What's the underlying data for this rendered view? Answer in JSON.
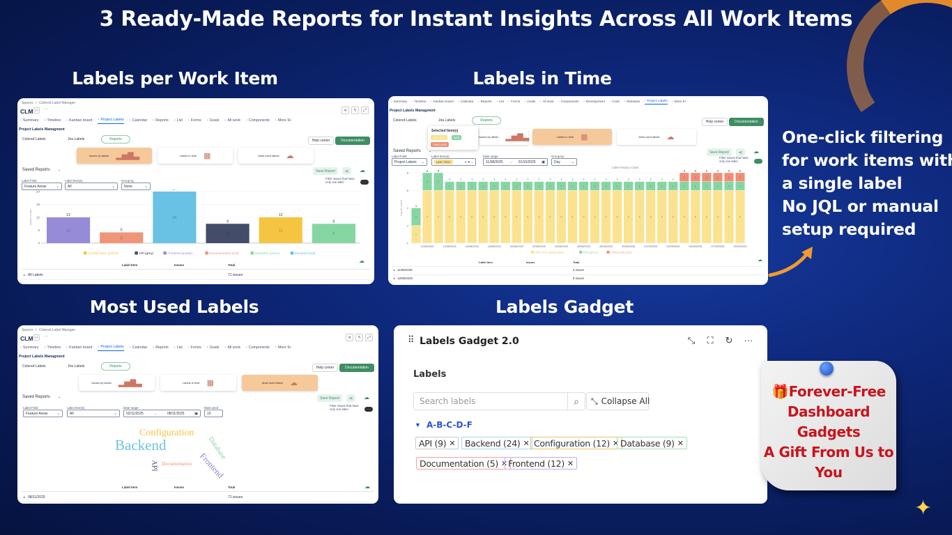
{
  "header": {
    "title": "3 Ready-Made Reports for Instant Insights Across All Work Items"
  },
  "sections": {
    "labels_per_item": "Labels per Work Item",
    "labels_in_time": "Labels in Time",
    "most_used": "Most Used Labels",
    "gadget": "Labels Gadget"
  },
  "side_text": [
    "One-click filtering",
    "for work items with",
    "a single label",
    "No JQL or manual",
    "setup required"
  ],
  "note": {
    "lines": [
      "🎁Forever-Free",
      "Dashboard",
      "Gadgets",
      "A Gift From Us to",
      "You"
    ]
  },
  "app": {
    "breadcrumb": [
      "Spaces",
      "/",
      "Colored Label Manager"
    ],
    "project": "CLM",
    "more": "···",
    "tabs": [
      "Summary",
      "Timeline",
      "Kanban board",
      "Project Labels",
      "Calendar",
      "Reports",
      "List",
      "Forms",
      "Goals",
      "All work",
      "Components",
      "More 9+"
    ],
    "page_title": "Project Labels Managment",
    "links": [
      "Colored Labels",
      "Jira Labels",
      "Reports"
    ],
    "help": "Help center",
    "docs": "Documentation",
    "cards": [
      "Issues by labels",
      "Labels in time",
      "Most used labels"
    ],
    "saved_reports": "Saved Reports",
    "save_report": "Save Report",
    "filter_toggle": "Filter issues that have only one label",
    "table_headers": [
      "Label Item",
      "Issues",
      "Total"
    ]
  },
  "panel1": {
    "filters": [
      {
        "label": "Label Field",
        "value": "Feature Areas"
      },
      {
        "label": "Label Item(s)",
        "value": "All"
      },
      {
        "label": "Group by",
        "value": "None"
      }
    ],
    "row": {
      "label": "All Labels",
      "total": "71 issues"
    }
  },
  "panel2": {
    "tabs": [
      "Summary",
      "Timeline",
      "Kanban board",
      "Calendar",
      "Reports",
      "List",
      "Forms",
      "Goals",
      "All work",
      "Components",
      "Development",
      "Code",
      "Releases",
      "Project Labels",
      "More 9+"
    ],
    "popup": {
      "title": "Selected Item(s)",
      "items": [
        "UNIT TEST",
        "WSB",
        "CONCLUDE"
      ]
    },
    "label_field": {
      "label": "Label Field",
      "value": "Project Labels"
    },
    "label_items": {
      "label": "Label Item(s)",
      "value": "UNIT TEST"
    },
    "date_range": {
      "label": "Date range",
      "from": "11/08/2025",
      "to": "31/10/2025"
    },
    "group_by": {
      "label": "Group by",
      "value": "Day"
    },
    "rows": [
      {
        "label": "11/08/2025",
        "total": "4 issues"
      },
      {
        "label": "12/08/2025",
        "total": "8 issues"
      }
    ]
  },
  "panel3": {
    "filters": [
      {
        "label": "Label Field",
        "value": "Feature Areas"
      },
      {
        "label": "Label Item(s)",
        "value": "All"
      }
    ],
    "date_range": {
      "label": "Date range",
      "from": "02/11/2025",
      "to": "08/11/2025"
    },
    "most_used": {
      "label": "Most used",
      "value": "10"
    },
    "words": [
      {
        "text": "Configuration",
        "color": "#f5c242"
      },
      {
        "text": "Backend",
        "color": "#6ac3e3"
      },
      {
        "text": "Database",
        "color": "#86d3a3"
      },
      {
        "text": "Frontend",
        "color": "#8b7fd6"
      },
      {
        "text": "API",
        "color": "#3e4a63"
      },
      {
        "text": "Documentation",
        "color": "#ef9076"
      }
    ],
    "row": {
      "label": "08/11/2025",
      "total": "71 issues"
    }
  },
  "gadget": {
    "title": "Labels Gadget 2.0",
    "section": "Labels",
    "search_placeholder": "Search labels",
    "collapse": "Collapse All",
    "group": "A-B-C-D-F",
    "tags": [
      {
        "text": "API (9)",
        "color": "#c8c8c8"
      },
      {
        "text": "Backend (24)",
        "color": "#a9d4ef"
      },
      {
        "text": "Configuration (12)",
        "color": "#e8c46a"
      },
      {
        "text": "Database (9)",
        "color": "#a6dcb8"
      },
      {
        "text": "Documentation (5)",
        "color": "#f0a3a0"
      },
      {
        "text": "Frontend (12)",
        "color": "#c9a8f0"
      }
    ]
  },
  "chart_data": [
    {
      "type": "bar",
      "title": "",
      "ylabel": "Issues count",
      "ylim": [
        0,
        24
      ],
      "yticks": [
        0,
        6,
        12,
        18,
        24
      ],
      "grid": true,
      "categories": [
        "Frontend",
        "Documentation",
        "Backend",
        "API",
        "Configuration",
        "Database"
      ],
      "values": [
        12,
        5,
        24,
        9,
        12,
        9
      ],
      "colors": [
        "#968bd6",
        "#ef957a",
        "#69c2e3",
        "#434d6a",
        "#f5c542",
        "#86d6a3"
      ],
      "legend": [
        {
          "name": "Configuration (yellow)",
          "color": "#f5c542"
        },
        {
          "name": "API (grey)",
          "color": "#434d6a"
        },
        {
          "name": "Frontend (purple)",
          "color": "#968bd6"
        },
        {
          "name": "Documentation (red)",
          "color": "#ef957a"
        },
        {
          "name": "Database (green)",
          "color": "#86d6a3"
        },
        {
          "name": "Backend (teal)",
          "color": "#69c2e3"
        }
      ],
      "legend_position": "bottom"
    },
    {
      "type": "bar",
      "stacked": true,
      "title": "Label History Chart",
      "ylabel": "Issues count",
      "ylim": [
        0,
        8
      ],
      "yticks": [
        0,
        2,
        4,
        6,
        8
      ],
      "grid": true,
      "categories": [
        "11/08/2025",
        "12/08/2025",
        "13/08/2025",
        "14/08/2025",
        "15/08/2025",
        "16/08/2025",
        "17/08/2025",
        "18/08/2025",
        "19/08/2025",
        "20/08/2025",
        "21/08/2025",
        "22/08/2025",
        "23/08/2025",
        "24/08/2025",
        "25/08/2025",
        "26/08/2025",
        "27/08/2025",
        "28/08/2025",
        "29/08/2025",
        "30/08/2025",
        "31/08/2025",
        "01/09/2025",
        "02/09/2025",
        "03/09/2025",
        "04/09/2025",
        "05/09/2025",
        "06/09/2025",
        "07/09/2025",
        "08/09/2025",
        "09/09/2025"
      ],
      "xtick_labels": [
        "12/08/2025",
        "14/08/2025",
        "16/08/2025",
        "18/08/2025",
        "20/08/2025",
        "22/08/2025",
        "24/08/2025",
        "26/08/2025",
        "28/08/2025",
        "30/08/2025",
        "01/09/2025",
        "03/09/2025",
        "05/09/2025",
        "07/09/2025",
        "09/09/2025"
      ],
      "series": [
        {
          "name": "UNIT TEST (yellow-light)",
          "color": "#fbe28f",
          "values": [
            2,
            6,
            6,
            6,
            6,
            6,
            6,
            6,
            6,
            6,
            6,
            6,
            6,
            6,
            6,
            6,
            6,
            6,
            6,
            6,
            6,
            6,
            6,
            6,
            6,
            6,
            6,
            6,
            6,
            6
          ]
        },
        {
          "name": "WSB (green)",
          "color": "#86d6a3",
          "values": [
            2,
            2,
            2,
            1,
            1,
            1,
            1,
            1,
            1,
            1,
            1,
            1,
            1,
            1,
            1,
            1,
            1,
            1,
            1,
            1,
            1,
            1,
            1,
            1,
            1,
            1,
            1,
            1,
            1,
            1
          ]
        },
        {
          "name": "CONCLUDE (red)",
          "color": "#ef8e76",
          "values": [
            0,
            0,
            0,
            0,
            0,
            0,
            0,
            0,
            0,
            0,
            0,
            0,
            0,
            0,
            0,
            0,
            0,
            0,
            0,
            0,
            0,
            0,
            0,
            0,
            1,
            1,
            1,
            1,
            1,
            1
          ]
        }
      ],
      "legend_position": "bottom"
    }
  ]
}
